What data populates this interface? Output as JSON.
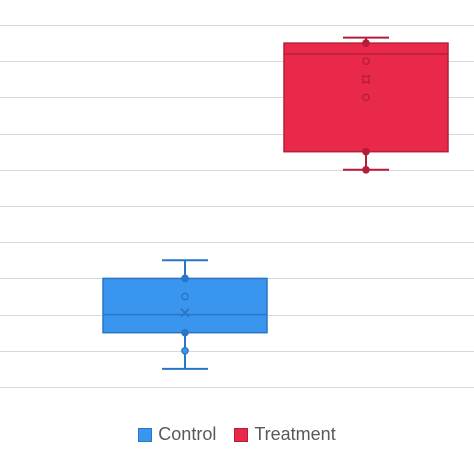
{
  "chart_data": {
    "type": "box",
    "ylim": [
      0,
      21
    ],
    "grid": true,
    "legend_position": "bottom",
    "series": [
      {
        "name": "Control",
        "color": "#3a95ee",
        "stroke": "#2a76c6",
        "min": 1,
        "q1": 3,
        "median": 4,
        "q3": 6,
        "max": 7,
        "mean": 4.1,
        "points": [
          2,
          3,
          5,
          6
        ]
      },
      {
        "name": "Treatment",
        "color": "#e8294a",
        "stroke": "#b51e38",
        "min": 12,
        "q1": 13,
        "median": 18.4,
        "q3": 19,
        "max": 19.3,
        "mean": 17,
        "points": [
          12,
          13,
          16,
          17,
          18,
          19
        ]
      }
    ]
  }
}
